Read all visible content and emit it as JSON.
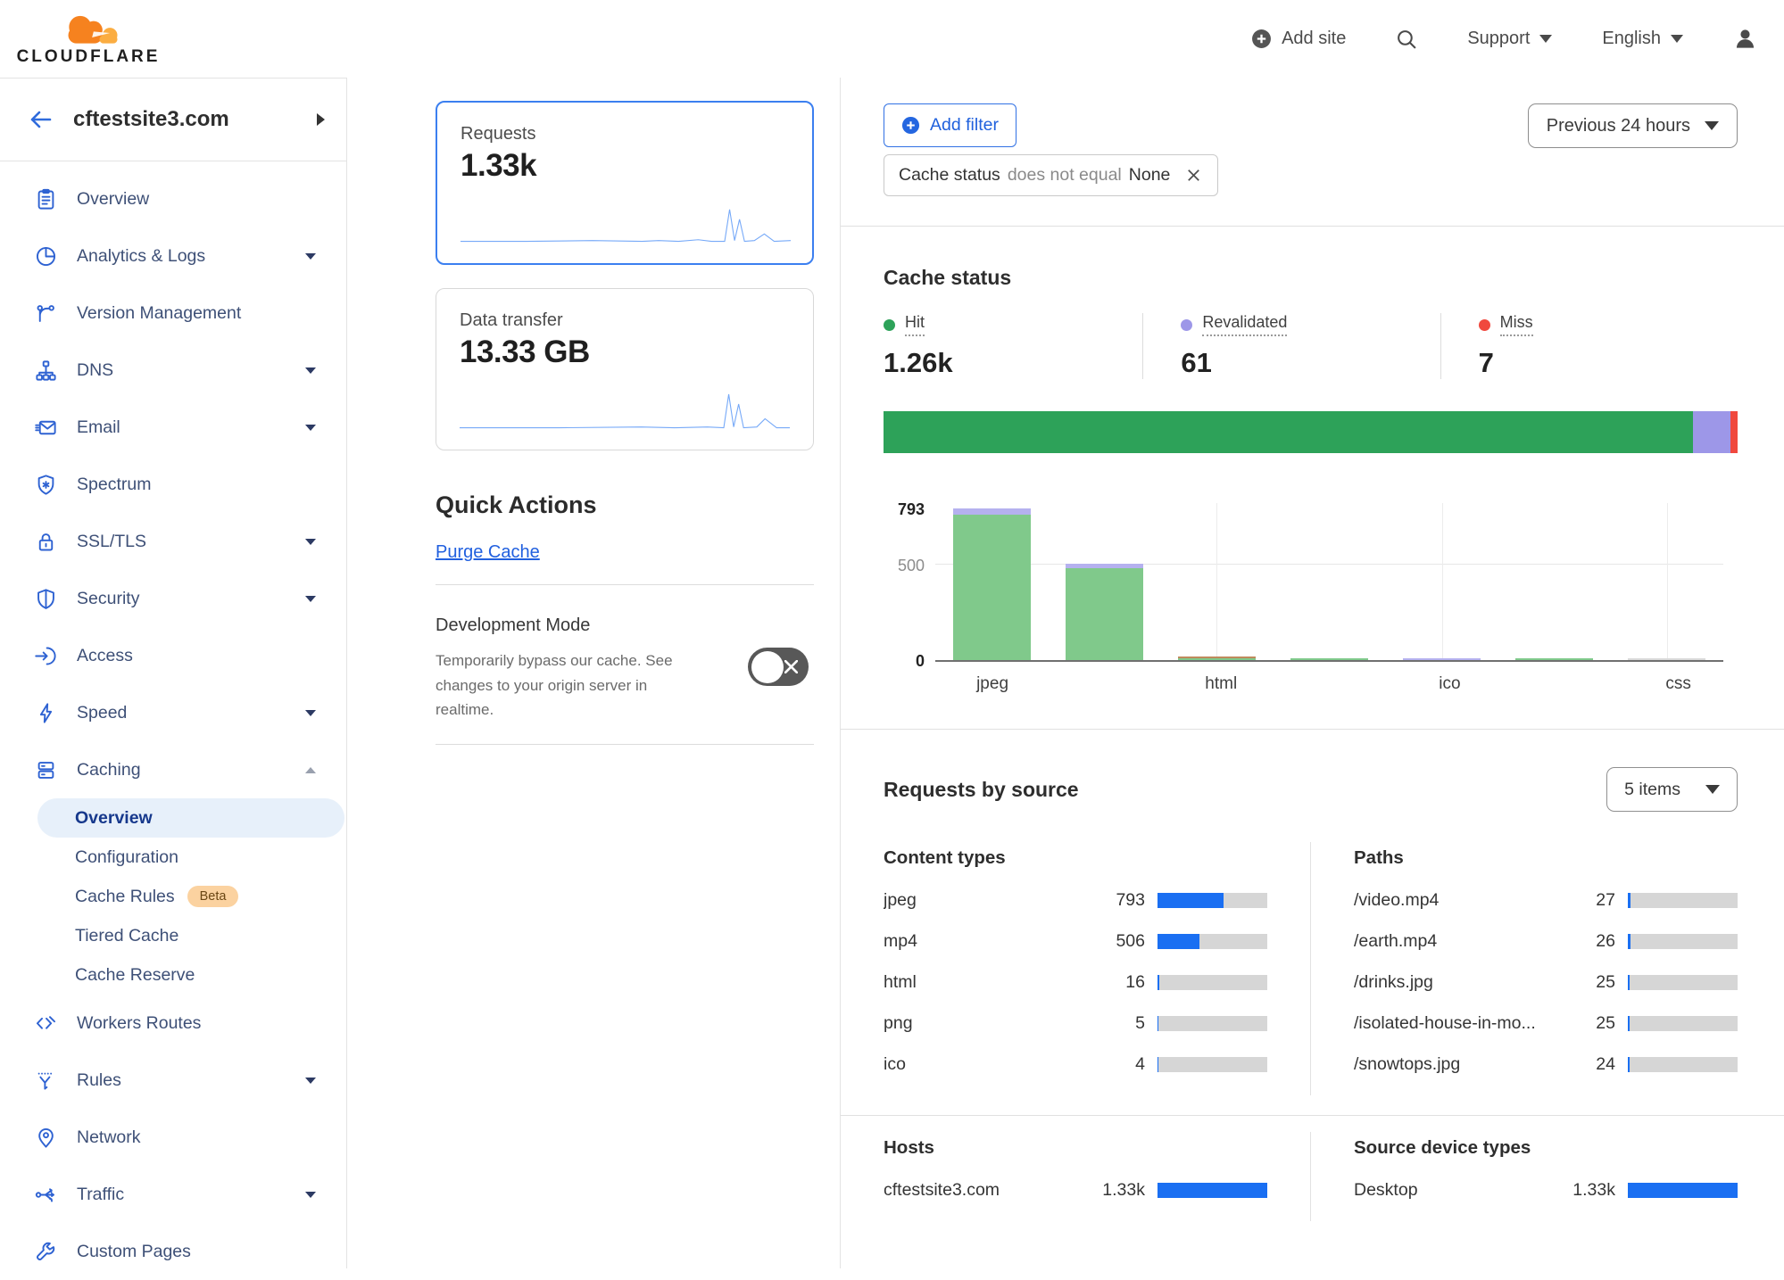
{
  "header": {
    "brand": "CLOUDFLARE",
    "add_site": "Add site",
    "support": "Support",
    "language": "English"
  },
  "sidebar": {
    "site": "cftestsite3.com",
    "items": [
      {
        "label": "Overview",
        "icon": "overview-icon",
        "caret": false
      },
      {
        "label": "Analytics & Logs",
        "icon": "analytics-icon",
        "caret": true
      },
      {
        "label": "Version Management",
        "icon": "version-management-icon",
        "caret": false
      },
      {
        "label": "DNS",
        "icon": "dns-icon",
        "caret": true
      },
      {
        "label": "Email",
        "icon": "email-icon",
        "caret": true
      },
      {
        "label": "Spectrum",
        "icon": "spectrum-icon",
        "caret": false
      },
      {
        "label": "SSL/TLS",
        "icon": "ssl-tls-icon",
        "caret": true
      },
      {
        "label": "Security",
        "icon": "security-icon",
        "caret": true
      },
      {
        "label": "Access",
        "icon": "access-icon",
        "caret": false
      },
      {
        "label": "Speed",
        "icon": "speed-icon",
        "caret": true
      },
      {
        "label": "Caching",
        "icon": "caching-icon",
        "caret": "up",
        "expanded": true,
        "children": [
          {
            "label": "Overview",
            "selected": true
          },
          {
            "label": "Configuration"
          },
          {
            "label": "Cache Rules",
            "badge": "Beta"
          },
          {
            "label": "Tiered Cache"
          },
          {
            "label": "Cache Reserve"
          }
        ]
      },
      {
        "label": "Workers Routes",
        "icon": "workers-routes-icon",
        "caret": false
      },
      {
        "label": "Rules",
        "icon": "rules-icon",
        "caret": true
      },
      {
        "label": "Network",
        "icon": "network-icon",
        "caret": false
      },
      {
        "label": "Traffic",
        "icon": "traffic-icon",
        "caret": true
      },
      {
        "label": "Custom Pages",
        "icon": "custom-pages-icon",
        "caret": false
      }
    ]
  },
  "cards": {
    "requests": {
      "label": "Requests",
      "value": "1.33k",
      "selected": true,
      "sparkline": [
        [
          0,
          26.5
        ],
        [
          20,
          26.5
        ],
        [
          40,
          26
        ],
        [
          55,
          26.5
        ],
        [
          60,
          26
        ],
        [
          66,
          26.5
        ],
        [
          72,
          25.5
        ],
        [
          76,
          26.5
        ],
        [
          80,
          26.5
        ],
        [
          81.5,
          7
        ],
        [
          83,
          26
        ],
        [
          84.5,
          13
        ],
        [
          86,
          26.5
        ],
        [
          89,
          26
        ],
        [
          92,
          22
        ],
        [
          95,
          26.5
        ],
        [
          100,
          26
        ]
      ]
    },
    "data_transfer": {
      "label": "Data transfer",
      "value": "13.33 GB",
      "selected": false,
      "sparkline": [
        [
          0,
          26.5
        ],
        [
          30,
          26.5
        ],
        [
          55,
          26
        ],
        [
          65,
          26.5
        ],
        [
          75,
          26
        ],
        [
          80,
          26.5
        ],
        [
          81.5,
          6
        ],
        [
          83,
          26
        ],
        [
          84.5,
          12
        ],
        [
          86,
          26.5
        ],
        [
          90,
          26
        ],
        [
          92.5,
          21
        ],
        [
          96,
          26.5
        ],
        [
          100,
          26.5
        ]
      ]
    }
  },
  "quick_actions": {
    "title": "Quick Actions",
    "purge_cache": "Purge Cache",
    "dev_mode": {
      "title": "Development Mode",
      "description": "Temporarily bypass our cache. See changes to your origin server in realtime.",
      "state": "off"
    }
  },
  "filter_bar": {
    "add_filter": "Add filter",
    "chip": {
      "field": "Cache status",
      "operator": "does not equal",
      "value": "None"
    },
    "time_range": "Previous 24 hours"
  },
  "cache_status": {
    "title": "Cache status",
    "stats": [
      {
        "label": "Hit",
        "value": "1.26k",
        "color": "#2da259"
      },
      {
        "label": "Revalidated",
        "value": "61",
        "color": "#9d97e8"
      },
      {
        "label": "Miss",
        "value": "7",
        "color": "#f0483e"
      }
    ],
    "stacked_bar": [
      {
        "name": "hit",
        "color": "#2da259",
        "pct": 94.8
      },
      {
        "name": "revalidated",
        "color": "#9d97e8",
        "pct": 4.4
      },
      {
        "name": "miss",
        "color": "#f0483e",
        "pct": 0.8
      }
    ]
  },
  "chart_data": {
    "type": "bar",
    "stacked": true,
    "title": "Cache status by content type",
    "categories": [
      "jpeg",
      "mp4",
      "html",
      "png",
      "ico",
      "",
      "css"
    ],
    "xticks": [
      {
        "index": 0,
        "label": "jpeg"
      },
      {
        "index": 2,
        "label": "html"
      },
      {
        "index": 4,
        "label": "ico"
      },
      {
        "index": 6,
        "label": "css"
      }
    ],
    "vgrid_at": [
      2,
      4,
      6
    ],
    "series": [
      {
        "name": "hit",
        "color": "#80c98b",
        "values": [
          760,
          480,
          6,
          5,
          0,
          2,
          0
        ]
      },
      {
        "name": "revalidated",
        "color": "#b5b1ef",
        "values": [
          33,
          26,
          0,
          0,
          4,
          0,
          0
        ]
      },
      {
        "name": "other-brown",
        "color": "#bf8a5d",
        "values": [
          0,
          0,
          10,
          0,
          0,
          0,
          0
        ]
      },
      {
        "name": "other-gray",
        "color": "#d9d9d9",
        "values": [
          0,
          0,
          0,
          0,
          0,
          0,
          2
        ]
      }
    ],
    "ylim": [
      0,
      793
    ],
    "yticks": [
      {
        "value": 793,
        "style": "strong"
      },
      {
        "value": 500,
        "style": "soft"
      },
      {
        "value": 0,
        "style": "strong"
      }
    ],
    "grid": true,
    "legend_position": "none"
  },
  "requests_by_source": {
    "title": "Requests by source",
    "items_selector": "5 items",
    "tables": [
      {
        "heading": "Content types",
        "rows": [
          {
            "label": "jpeg",
            "value": "793",
            "pct": 60
          },
          {
            "label": "mp4",
            "value": "506",
            "pct": 38
          },
          {
            "label": "html",
            "value": "16",
            "pct": 1.5
          },
          {
            "label": "png",
            "value": "5",
            "pct": 0.6
          },
          {
            "label": "ico",
            "value": "4",
            "pct": 0.5
          }
        ]
      },
      {
        "heading": "Paths",
        "rows": [
          {
            "label": "/video.mp4",
            "value": "27",
            "pct": 2.2
          },
          {
            "label": "/earth.mp4",
            "value": "26",
            "pct": 2.1
          },
          {
            "label": "/drinks.jpg",
            "value": "25",
            "pct": 2.0
          },
          {
            "label": "/isolated-house-in-mo...",
            "value": "25",
            "pct": 2.0
          },
          {
            "label": "/snowtops.jpg",
            "value": "24",
            "pct": 1.9
          }
        ]
      },
      {
        "heading": "Hosts",
        "rows": [
          {
            "label": "cftestsite3.com",
            "value": "1.33k",
            "pct": 100
          }
        ]
      },
      {
        "heading": "Source device types",
        "rows": [
          {
            "label": "Desktop",
            "value": "1.33k",
            "pct": 100
          }
        ]
      }
    ]
  }
}
